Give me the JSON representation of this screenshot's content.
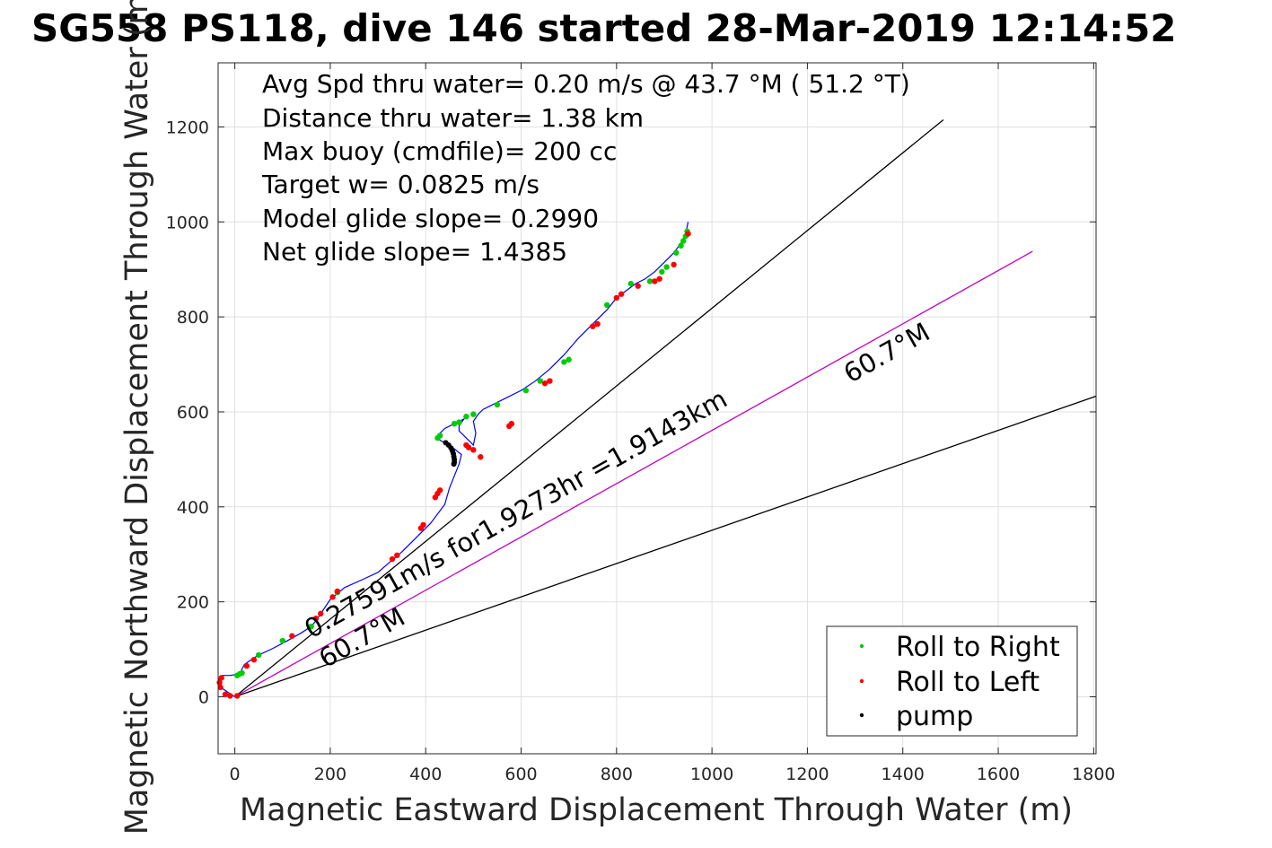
{
  "chart_data": {
    "type": "line",
    "title": "SG558 PS118, dive 146 started 28-Mar-2019 12:14:52",
    "xlabel": "Magnetic Eastward Displacement Through Water (m)",
    "ylabel": "Magnetic Northward Displacement Through Water (m)",
    "xlim": [
      -35,
      1805
    ],
    "ylim": [
      -120,
      1335
    ],
    "xticks": [
      0,
      200,
      400,
      600,
      800,
      1000,
      1200,
      1400,
      1600,
      1800
    ],
    "yticks": [
      0,
      200,
      400,
      600,
      800,
      1000,
      1200
    ],
    "grid": true,
    "info_lines": [
      "Avg Spd thru water=  0.20 m/s @  43.7 °M ( 51.2 °T)",
      "Distance thru water=  1.38 km",
      "Max buoy (cmdfile)= 200 cc",
      "Target w= 0.0825 m/s",
      "Model glide slope= 0.2990",
      "Net glide slope= 1.4385"
    ],
    "reference_lines": [
      {
        "color": "#000000",
        "x": [
          0,
          1485
        ],
        "y": [
          0,
          1215
        ]
      },
      {
        "color": "#000000",
        "x": [
          0,
          1805
        ],
        "y": [
          0,
          633
        ]
      },
      {
        "color": "#c000c0",
        "x": [
          0,
          1672
        ],
        "y": [
          0,
          938
        ]
      }
    ],
    "annotations": [
      {
        "text": "0.27591m/s for1.9273hr =1.9143km",
        "x": 160,
        "y": 122,
        "angle": 29.3
      },
      {
        "text": "60.7°M",
        "x": 190,
        "y": 60,
        "angle": 29.3
      },
      {
        "text": "60.7°M",
        "x": 1290,
        "y": 660,
        "angle": 29.3
      }
    ],
    "track": {
      "name": "track",
      "color": "#0000ff",
      "x": [
        0,
        -30,
        -35,
        -25,
        -10,
        10,
        20,
        30,
        50,
        80,
        110,
        140,
        160,
        170,
        180,
        200,
        230,
        270,
        300,
        330,
        350,
        380,
        410,
        440,
        450,
        460,
        470,
        475,
        450,
        430,
        425,
        440,
        460,
        480,
        470,
        470,
        490,
        500,
        505,
        500,
        510,
        520,
        540,
        570,
        600,
        630,
        660,
        690,
        720,
        750,
        780,
        800,
        820,
        840,
        860,
        880,
        900,
        920,
        935,
        945,
        950
      ],
      "y": [
        0,
        20,
        35,
        45,
        45,
        48,
        68,
        75,
        88,
        102,
        118,
        135,
        148,
        160,
        175,
        205,
        230,
        248,
        262,
        288,
        305,
        335,
        365,
        405,
        440,
        465,
        490,
        510,
        530,
        540,
        550,
        565,
        575,
        585,
        570,
        560,
        540,
        530,
        555,
        580,
        595,
        605,
        615,
        630,
        645,
        665,
        690,
        720,
        755,
        785,
        815,
        840,
        855,
        870,
        880,
        895,
        915,
        935,
        955,
        975,
        1000
      ]
    },
    "roll_right": {
      "name": "Roll to Right",
      "color": "#00cc00",
      "x": [
        5,
        10,
        15,
        50,
        100,
        160,
        215,
        425,
        430,
        460,
        470,
        485,
        500,
        550,
        610,
        640,
        690,
        700,
        780,
        830,
        870,
        895,
        905,
        925,
        935,
        940,
        945,
        948
      ],
      "y": [
        45,
        48,
        50,
        88,
        118,
        148,
        220,
        545,
        550,
        575,
        578,
        590,
        595,
        615,
        645,
        665,
        705,
        710,
        825,
        870,
        875,
        895,
        905,
        935,
        950,
        960,
        970,
        980
      ]
    },
    "roll_left": {
      "name": "Roll to Left",
      "color": "#ff0000",
      "x": [
        -30,
        -32,
        -28,
        -20,
        -10,
        5,
        25,
        40,
        120,
        170,
        180,
        205,
        215,
        330,
        340,
        390,
        395,
        420,
        425,
        430,
        485,
        490,
        500,
        515,
        575,
        580,
        650,
        660,
        750,
        760,
        800,
        810,
        845,
        880,
        890,
        920,
        950
      ],
      "y": [
        20,
        30,
        40,
        5,
        2,
        2,
        65,
        78,
        128,
        165,
        175,
        210,
        222,
        290,
        298,
        355,
        362,
        420,
        428,
        435,
        530,
        525,
        520,
        505,
        570,
        575,
        660,
        665,
        780,
        785,
        840,
        848,
        865,
        875,
        880,
        910,
        975
      ]
    },
    "pump": {
      "name": "pump",
      "color": "#000000",
      "x": [
        442,
        448,
        453,
        456,
        458,
        459,
        460,
        460,
        459
      ],
      "y": [
        535,
        530,
        524,
        518,
        512,
        506,
        500,
        494,
        490
      ]
    },
    "legend": {
      "placement": "bottom-right",
      "entries": [
        "Roll to Right",
        "Roll to Left",
        "pump"
      ]
    }
  }
}
